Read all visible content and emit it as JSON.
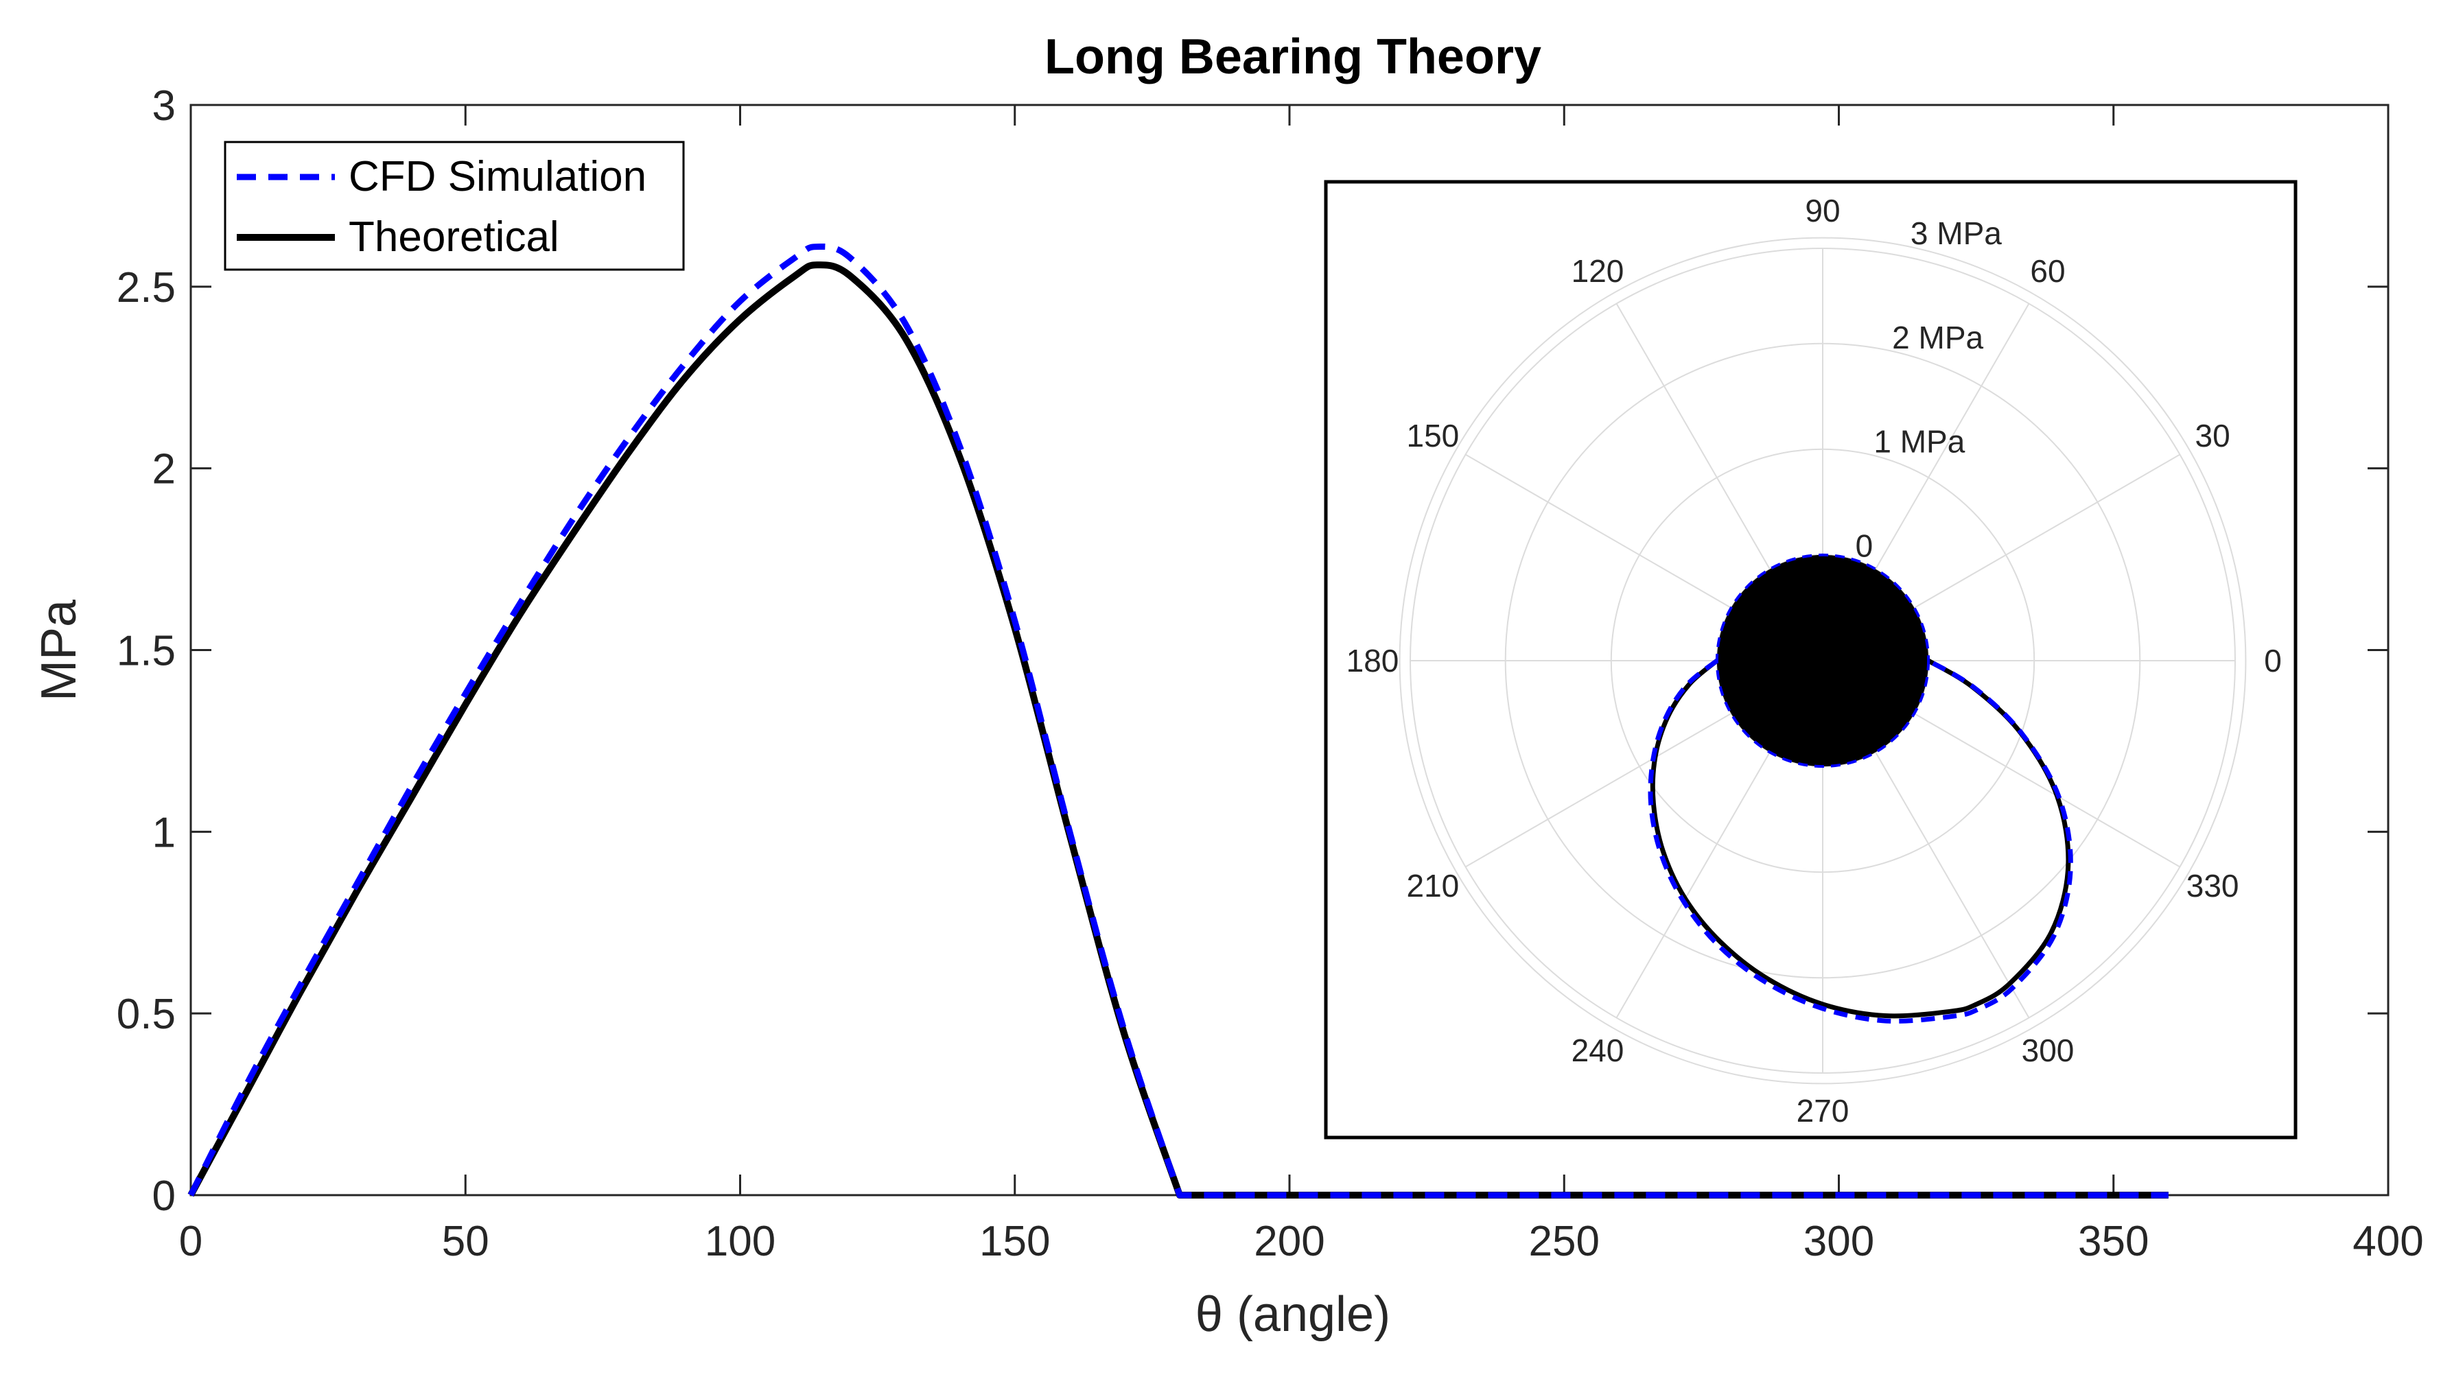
{
  "chart_data": [
    {
      "type": "line",
      "title": "Long Bearing Theory",
      "xlabel": "θ (angle)",
      "ylabel": "MPa",
      "xlim": [
        0,
        400
      ],
      "ylim": [
        0,
        3
      ],
      "xticks": [
        0,
        50,
        100,
        150,
        200,
        250,
        300,
        350,
        400
      ],
      "xtick_labels": [
        "0",
        "50",
        "100",
        "150",
        "200",
        "250",
        "300",
        "350",
        "400"
      ],
      "yticks": [
        0,
        0.5,
        1,
        1.5,
        2,
        2.5,
        3
      ],
      "ytick_labels": [
        "0",
        "0.5",
        "1",
        "1.5",
        "2",
        "2.5",
        "3"
      ],
      "grid": false,
      "legend_position": "top-left",
      "series": [
        {
          "name": "CFD Simulation",
          "style": "dashed",
          "color": "#0000ff",
          "x": [
            0,
            10,
            20,
            30,
            40,
            50,
            60,
            70,
            80,
            90,
            100,
            110,
            114,
            120,
            130,
            140,
            150,
            160,
            170,
            180,
            200,
            250,
            300,
            360
          ],
          "y": [
            0,
            0.3,
            0.58,
            0.85,
            1.12,
            1.38,
            1.63,
            1.87,
            2.09,
            2.29,
            2.46,
            2.58,
            2.61,
            2.58,
            2.4,
            2.06,
            1.58,
            1.0,
            0.45,
            0,
            0,
            0,
            0,
            0
          ]
        },
        {
          "name": "Theoretical",
          "style": "solid",
          "color": "#000000",
          "x": [
            0,
            10,
            20,
            30,
            40,
            50,
            60,
            70,
            80,
            90,
            100,
            110,
            114,
            120,
            130,
            140,
            150,
            160,
            170,
            180,
            200,
            250,
            300,
            360
          ],
          "y": [
            0,
            0.28,
            0.56,
            0.83,
            1.09,
            1.35,
            1.6,
            1.83,
            2.05,
            2.25,
            2.41,
            2.53,
            2.56,
            2.53,
            2.36,
            2.03,
            1.56,
            0.99,
            0.44,
            0,
            0,
            0,
            0,
            0
          ]
        }
      ]
    },
    {
      "type": "polar",
      "position": "inset-right",
      "theta_ticks": [
        0,
        30,
        60,
        90,
        120,
        150,
        180,
        210,
        240,
        270,
        300,
        330
      ],
      "theta_tick_labels": [
        "0",
        "30",
        "60",
        "90",
        "120",
        "150",
        "180",
        "210",
        "240",
        "270",
        "300",
        "330"
      ],
      "r_ticks": [
        0,
        1,
        2,
        3
      ],
      "r_tick_labels": [
        "0",
        "1 MPa",
        "2 MPa",
        "3 MPa"
      ],
      "r_offset": 1,
      "r_max": 3.9,
      "filled_core_radius": 1,
      "note": "Pressure plotted as radius = 1 + p(θ); curve wraps angle by θ + 180°",
      "series": [
        {
          "name": "CFD Simulation",
          "style": "dashed",
          "color": "#0000ff",
          "theta": [
            0,
            10,
            20,
            30,
            40,
            50,
            60,
            70,
            80,
            90,
            100,
            110,
            114,
            120,
            130,
            140,
            150,
            160,
            170,
            180,
            360
          ],
          "r": [
            0,
            0.3,
            0.58,
            0.85,
            1.12,
            1.38,
            1.63,
            1.87,
            2.09,
            2.29,
            2.46,
            2.58,
            2.61,
            2.58,
            2.4,
            2.06,
            1.58,
            1.0,
            0.45,
            0,
            0
          ]
        },
        {
          "name": "Theoretical",
          "style": "solid",
          "color": "#000000",
          "theta": [
            0,
            10,
            20,
            30,
            40,
            50,
            60,
            70,
            80,
            90,
            100,
            110,
            114,
            120,
            130,
            140,
            150,
            160,
            170,
            180,
            360
          ],
          "r": [
            0,
            0.28,
            0.56,
            0.83,
            1.09,
            1.35,
            1.6,
            1.83,
            2.05,
            2.25,
            2.41,
            2.53,
            2.56,
            2.53,
            2.36,
            2.03,
            1.56,
            0.99,
            0.44,
            0,
            0
          ]
        }
      ]
    }
  ]
}
